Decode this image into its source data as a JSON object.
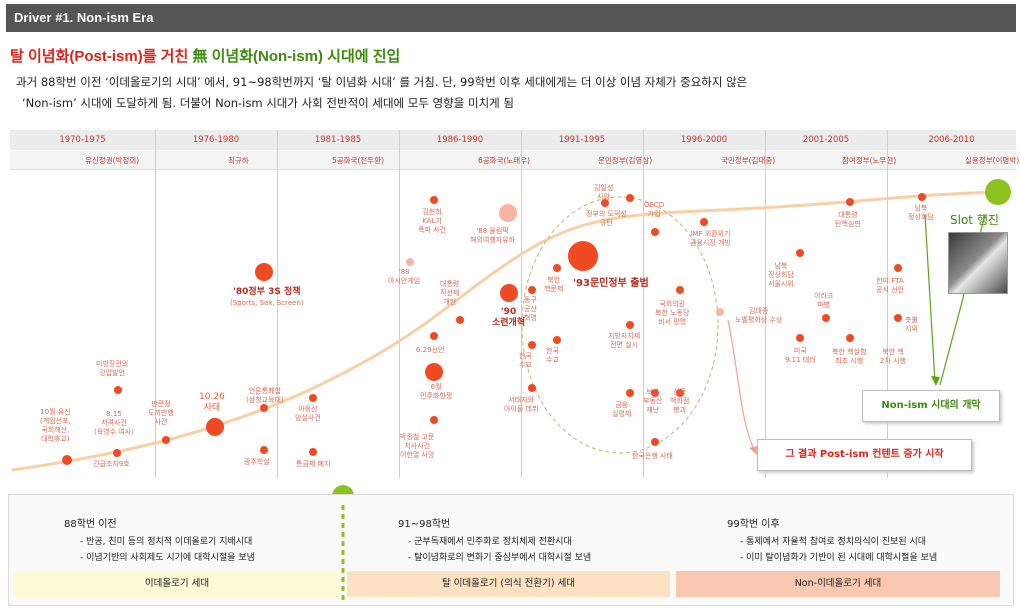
{
  "header": {
    "title": "Driver #1. Non-ism Era"
  },
  "headline": {
    "part1": "탈 이념화(Post-ism)를 거친 ",
    "part2": "無 이념화(Non-ism) 시대에 진입"
  },
  "subtitle": {
    "line1": "과거 88학번 이전 ‘이데올로기의 시대’ 에서, 91~98학번까지 ‘탈 이념화 시대’ 를 거침. 단, 99학번 이후 세대에게는 더 이상 이념 자체가 중요하지 않은",
    "line2": "‘Non-ism’ 시대에 도달하게 됨. 더불어 Non-ism 시대가 사회 전반적이 세대에 모두 영향을 미치게 됨"
  },
  "periods": [
    "1970-1975",
    "1976-1980",
    "1981-1985",
    "1986-1990",
    "1991-1995",
    "1996-2000",
    "2001-2005",
    "2006-2010"
  ],
  "governments": [
    "유신정권(박정희)",
    "최규하",
    "5공화국(전두환)",
    "6공화국(노태우)",
    "문민정부(김영삼)",
    "국민정부(김대중)",
    "참여정부(노무현)",
    "실용정부(이명박)"
  ],
  "events": [
    {
      "id": "e1",
      "text": "10월 유신\n(계엄선포,\n국회해산,\n대학휴교)"
    },
    {
      "id": "e2",
      "text": "긴급조치9호"
    },
    {
      "id": "e3",
      "text": "미방장관의\n강압발언"
    },
    {
      "id": "e4",
      "text": "8.15\n저격사건\n(육영수 여사)"
    },
    {
      "id": "e5",
      "text": "판문점\n도끼만행\n사건"
    },
    {
      "id": "e6",
      "text": "10.26\n사태"
    },
    {
      "id": "e7",
      "text": "광주학살"
    },
    {
      "id": "e8",
      "text": "언론통폐합\n(삼청교육대)"
    },
    {
      "id": "e9",
      "text": "'80정부 3S 정책",
      "sub": "(Sports, Sex, Screen)"
    },
    {
      "id": "e10",
      "text": "아웅산\n암살사건"
    },
    {
      "id": "e11",
      "text": "통금제 폐지"
    },
    {
      "id": "e12",
      "text": "'88\n아시안게임"
    },
    {
      "id": "e13",
      "text": "김현희\nKAL기\n폭파 사건"
    },
    {
      "id": "e14",
      "text": "'88 올림픽\n해외여행자유화"
    },
    {
      "id": "e15",
      "text": "대통령\n직선제\n개헌"
    },
    {
      "id": "e16",
      "text": "6.29선언"
    },
    {
      "id": "e17",
      "text": "6월\n민주화항쟁"
    },
    {
      "id": "e18",
      "text": "박종철 고문\n치사사건\n이한열 사망"
    },
    {
      "id": "e19",
      "text": "'90\n소련개혁"
    },
    {
      "id": "e20",
      "text": "동구\n공산\n혁명"
    },
    {
      "id": "e21",
      "text": "한국\n수교"
    },
    {
      "id": "e22",
      "text": "서태지와\n아이들 데뷔"
    },
    {
      "id": "e23",
      "text": "북한\n핵문제"
    },
    {
      "id": "e24",
      "text": "한국\n수교"
    },
    {
      "id": "e25",
      "text": "'93문민정부 출범"
    },
    {
      "id": "e26",
      "text": "김일성\n사망"
    },
    {
      "id": "e27",
      "text": "정부의 도덕성\n규탄"
    },
    {
      "id": "e28",
      "text": "OECD\n가입"
    },
    {
      "id": "e29",
      "text": "지방자치제\n전면 실시"
    },
    {
      "id": "e30",
      "text": "국회의원\n북한 노동당\n비서 망명"
    },
    {
      "id": "e31",
      "text": "금융\n실명제"
    },
    {
      "id": "e32",
      "text": "보상\n부동산\n재난"
    },
    {
      "id": "e33",
      "text": "삼풍\n백화점\n붕괴"
    },
    {
      "id": "e34",
      "text": "한국은행 사태"
    },
    {
      "id": "e35",
      "text": "IMF 외환위기\n금융시장 개방"
    },
    {
      "id": "e36",
      "text": "김대중\n노벨평화상 수상"
    },
    {
      "id": "e37",
      "text": "남북\n정상회담\n서울시위"
    },
    {
      "id": "e38",
      "text": "미국\n9.11 테러"
    },
    {
      "id": "e39",
      "text": "대통령\n탄핵심판"
    },
    {
      "id": "e40",
      "text": "이라크\n파병"
    },
    {
      "id": "e41",
      "text": "한미 FTA\n공식 선언"
    },
    {
      "id": "e42",
      "text": "북한 핵실험\n최초 시행"
    },
    {
      "id": "e43",
      "text": "남북\n정상회담"
    },
    {
      "id": "e44",
      "text": "북한 핵\n2차 시행"
    },
    {
      "id": "e45",
      "text": "촛불\n시위"
    }
  ],
  "callouts": {
    "slot": "Slot 행진",
    "non_ism_open": "Non-ism 시대의 개막",
    "post_ism_rise": "그 결과 Post-ism 컨텐트 증가 시작"
  },
  "eras": [
    {
      "title": "88학번 이전",
      "items": [
        "- 반공, 친미 등의 정치적 이데올로기 지배시대",
        "- 이념기반의 사회제도 시기에 대학시절을 보냄"
      ],
      "band": "이데올로기 세대",
      "color": "#fdfad5"
    },
    {
      "title": "91~98학번",
      "items": [
        "- 군부독재에서 민주화로 정치체제 전환시대",
        "- 탈이념화로의 변화기 중심부에서 대학시절 보냄"
      ],
      "band": "탈 이데올로기 (의식 전환기) 세대",
      "color": "#fde1c3"
    },
    {
      "title": "99학번 이후",
      "items": [
        "- 통제에서 자율적 참여로 정치의식이 진보된 시대",
        "- 이미 탈이념화가 기반이 된 시대에 대학시절을 보냄"
      ],
      "band": "Non-이데올로기 세대",
      "color": "#f8c8b0"
    }
  ],
  "colors": {
    "accent_red": "#d9261c",
    "accent_green": "#3d8a0c",
    "dot": "#f04a23",
    "curve": "#f9cfa3"
  }
}
